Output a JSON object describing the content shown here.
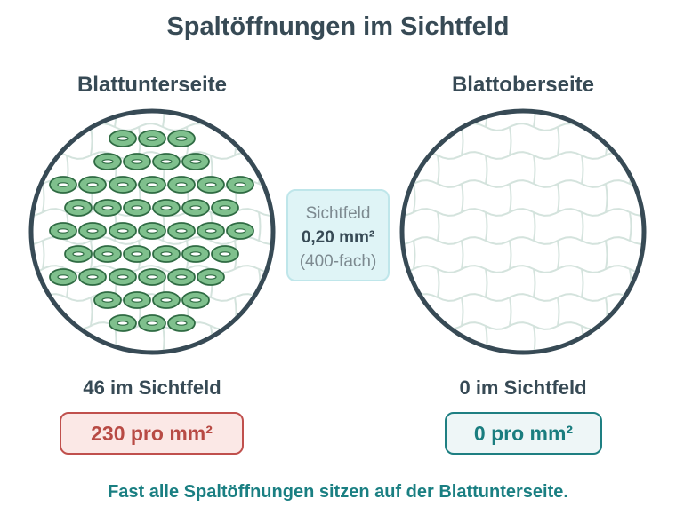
{
  "title": "Spaltöffnungen im Sichtfeld",
  "left": {
    "label": "Blattunterseite",
    "count_text": "46 im Sichtfeld",
    "stomata_count": 46,
    "density_text": "230 pro mm²",
    "color": "#c0504d"
  },
  "right": {
    "label": "Blattoberseite",
    "count_text": "0 im Sichtfeld",
    "stomata_count": 0,
    "density_text": "0 pro mm²",
    "color": "#1e7f82"
  },
  "field": {
    "label": "Sichtfeld",
    "area": "0,20 mm²",
    "magnification": "(400-fach)"
  },
  "footer": "Fast alle Spaltöffnungen sitzen auf der Blattunterseite.",
  "colors": {
    "circle_border": "#374a55",
    "cell_lines": "#d4e3dd",
    "stoma_fill": "#7fc08d",
    "stoma_stroke": "#2f6b43"
  }
}
